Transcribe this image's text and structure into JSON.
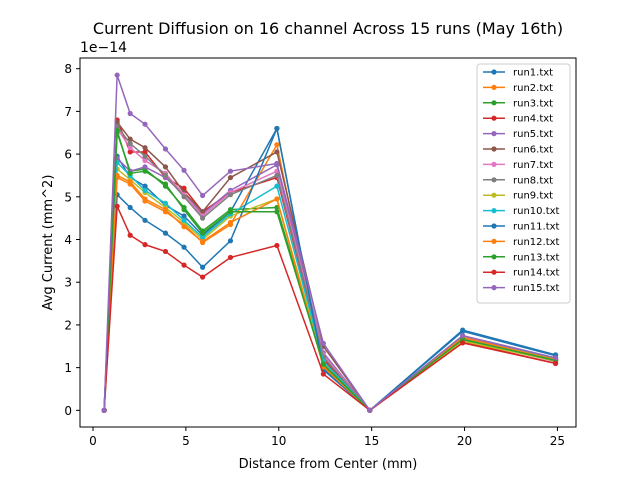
{
  "chart_data": {
    "type": "line",
    "title": "Current Diffusion on 16 channel Across 15 runs (May 16th)",
    "xlabel": "Distance from Center (mm)",
    "ylabel": "Avg Current (mm^2)",
    "y_offset_text": "1e−14",
    "xlim": [
      -0.7,
      26.0
    ],
    "ylim": [
      -0.39,
      8.25
    ],
    "xticks": [
      0,
      5,
      10,
      15,
      20,
      25
    ],
    "yticks": [
      0,
      1,
      2,
      3,
      4,
      5,
      6,
      7,
      8
    ],
    "xtick_labels": [
      "0",
      "5",
      "10",
      "15",
      "20",
      "25"
    ],
    "ytick_labels": [
      "0",
      "1",
      "2",
      "3",
      "4",
      "5",
      "6",
      "7",
      "8"
    ],
    "grid": false,
    "legend_position": "upper right",
    "x": [
      0.6,
      1.3,
      2.0,
      2.8,
      3.9,
      4.9,
      5.9,
      7.4,
      9.9,
      12.4,
      14.9,
      19.9,
      24.9
    ],
    "series": [
      {
        "name": "run1.txt",
        "color": "#1f77b4",
        "values": [
          0.0,
          5.95,
          5.45,
          5.25,
          4.8,
          4.55,
          4.1,
          4.65,
          6.6,
          0.95,
          0.0,
          1.88,
          1.3
        ]
      },
      {
        "name": "run2.txt",
        "color": "#ff7f0e",
        "values": [
          0.0,
          5.45,
          5.3,
          4.9,
          4.65,
          4.35,
          3.93,
          4.35,
          6.22,
          1.0,
          0.0,
          1.72,
          1.2
        ]
      },
      {
        "name": "run3.txt",
        "color": "#2ca02c",
        "values": [
          0.0,
          6.5,
          5.6,
          5.65,
          5.25,
          4.75,
          4.2,
          4.7,
          4.75,
          1.05,
          0.0,
          1.67,
          1.18
        ]
      },
      {
        "name": "run4.txt",
        "color": "#d62728",
        "values": [
          0.0,
          6.8,
          6.05,
          6.05,
          5.45,
          5.2,
          4.65,
          5.1,
          5.45,
          1.2,
          0.0,
          1.6,
          1.1
        ]
      },
      {
        "name": "run5.txt",
        "color": "#9467bd",
        "values": [
          0.0,
          5.9,
          5.6,
          5.7,
          5.45,
          5.05,
          4.6,
          5.15,
          5.75,
          1.35,
          0.0,
          1.7,
          1.22
        ]
      },
      {
        "name": "run6.txt",
        "color": "#8c564b",
        "values": [
          0.0,
          6.75,
          6.35,
          6.15,
          5.7,
          5.1,
          4.65,
          5.45,
          6.05,
          1.5,
          0.0,
          1.65,
          1.15
        ]
      },
      {
        "name": "run7.txt",
        "color": "#e377c2",
        "values": [
          0.0,
          6.6,
          6.15,
          5.85,
          5.55,
          5.05,
          4.55,
          5.1,
          5.6,
          1.3,
          0.0,
          1.66,
          1.19
        ]
      },
      {
        "name": "run8.txt",
        "color": "#7f7f7f",
        "values": [
          0.0,
          6.65,
          6.25,
          5.95,
          5.5,
          5.0,
          4.5,
          5.05,
          5.5,
          1.25,
          0.0,
          1.64,
          1.17
        ]
      },
      {
        "name": "run9.txt",
        "color": "#bcbd22",
        "values": [
          0.0,
          5.65,
          5.4,
          5.1,
          4.75,
          4.4,
          4.0,
          4.55,
          4.95,
          1.1,
          0.0,
          1.62,
          1.16
        ]
      },
      {
        "name": "run10.txt",
        "color": "#17becf",
        "values": [
          0.0,
          5.8,
          5.5,
          5.15,
          4.85,
          4.45,
          4.05,
          4.6,
          5.25,
          1.15,
          0.0,
          1.68,
          1.21
        ]
      },
      {
        "name": "run11.txt",
        "color": "#1f77b4",
        "values": [
          0.0,
          5.05,
          4.75,
          4.45,
          4.15,
          3.82,
          3.35,
          3.97,
          6.6,
          0.98,
          0.0,
          1.85,
          1.28
        ]
      },
      {
        "name": "run12.txt",
        "color": "#ff7f0e",
        "values": [
          0.0,
          5.5,
          5.35,
          4.95,
          4.7,
          4.3,
          3.95,
          4.4,
          4.95,
          1.02,
          0.0,
          1.7,
          1.19
        ]
      },
      {
        "name": "run13.txt",
        "color": "#2ca02c",
        "values": [
          0.0,
          6.55,
          5.55,
          5.6,
          5.3,
          4.7,
          4.15,
          4.65,
          4.65,
          1.08,
          0.0,
          1.66,
          1.17
        ]
      },
      {
        "name": "run14.txt",
        "color": "#d62728",
        "values": [
          0.0,
          4.78,
          4.1,
          3.88,
          3.72,
          3.4,
          3.12,
          3.58,
          3.86,
          0.85,
          0.0,
          1.58,
          1.1
        ]
      },
      {
        "name": "run15.txt",
        "color": "#9467bd",
        "values": [
          0.0,
          7.85,
          6.95,
          6.7,
          6.12,
          5.62,
          5.03,
          5.6,
          5.78,
          1.57,
          0.0,
          1.75,
          1.23
        ]
      }
    ]
  }
}
